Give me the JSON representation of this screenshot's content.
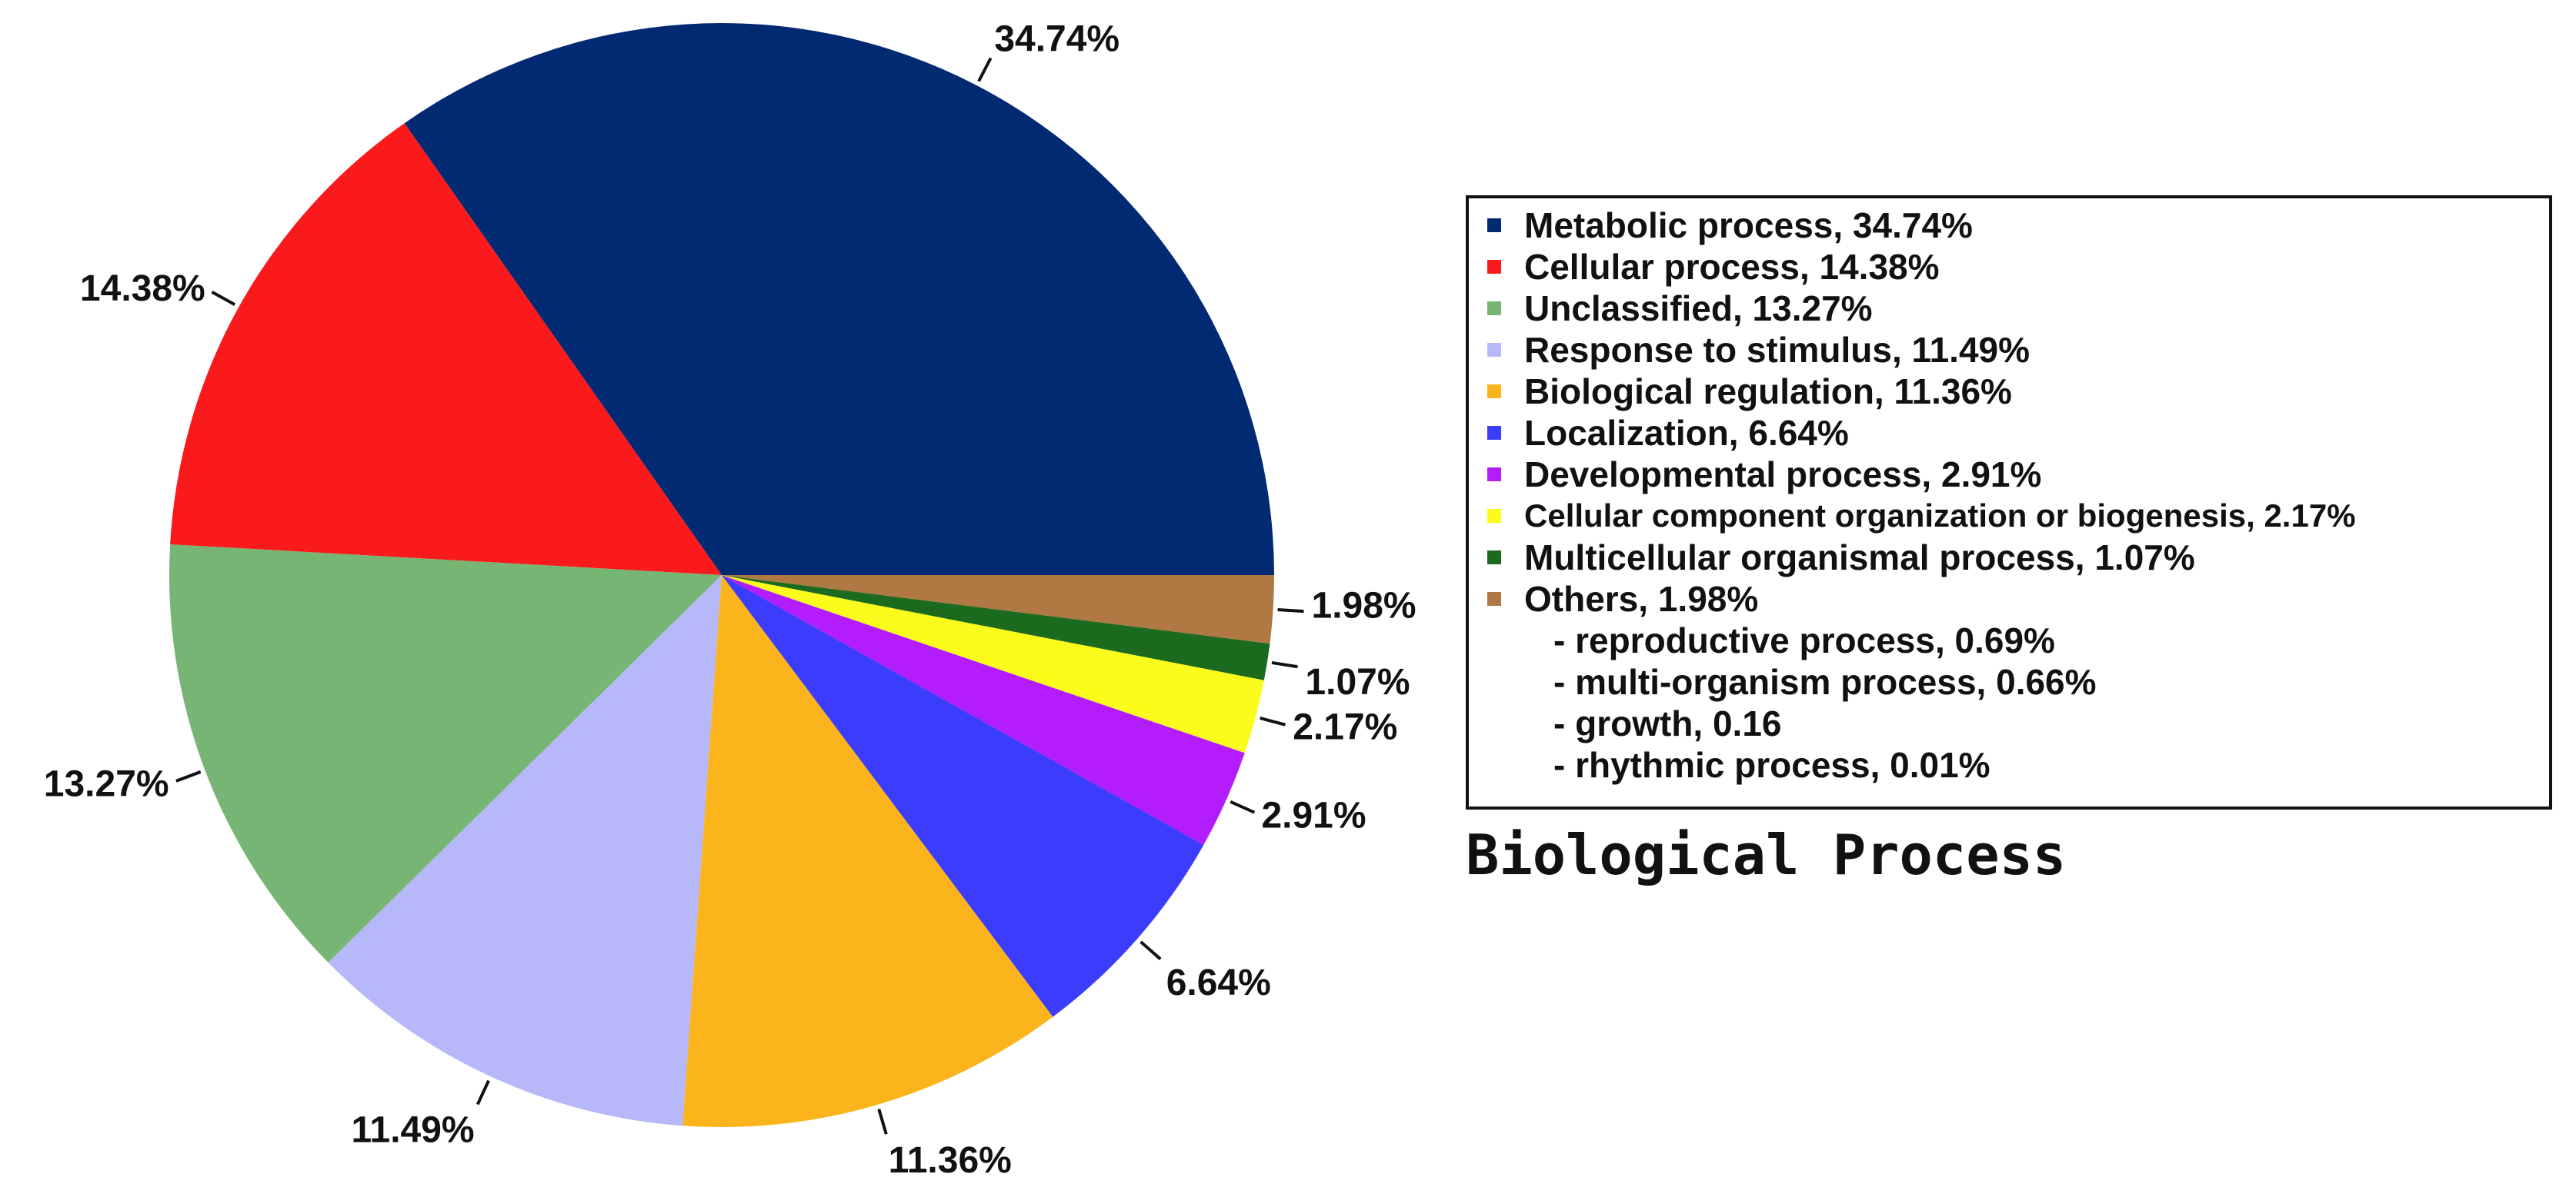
{
  "chart_data": {
    "type": "pie",
    "title": "Biological Process",
    "start_angle_deg": 0,
    "direction": "counterclockwise",
    "slices": [
      {
        "name": "Metabolic process",
        "value": 34.74,
        "label": "34.74%",
        "legend": "Metabolic process, 34.74%",
        "color": "#022a73"
      },
      {
        "name": "Cellular process",
        "value": 14.38,
        "label": "14.38%",
        "legend": "Cellular process, 14.38%",
        "color": "#fa1a1c"
      },
      {
        "name": "Unclassified",
        "value": 13.27,
        "label": "13.27%",
        "legend": "Unclassified, 13.27%",
        "color": "#77b574"
      },
      {
        "name": "Response to stimulus",
        "value": 11.49,
        "label": "11.49%",
        "legend": "Response to stimulus, 11.49%",
        "color": "#b7b8fa"
      },
      {
        "name": "Biological regulation",
        "value": 11.36,
        "label": "11.36%",
        "legend": "Biological regulation, 11.36%",
        "color": "#fcb41c"
      },
      {
        "name": "Localization",
        "value": 6.64,
        "label": "6.64%",
        "legend": "Localization, 6.64%",
        "color": "#3c3cfc"
      },
      {
        "name": "Developmental process",
        "value": 2.91,
        "label": "2.91%",
        "legend": "Developmental process, 2.91%",
        "color": "#b31cfc"
      },
      {
        "name": "Cellular component organization or biogenesis",
        "value": 2.17,
        "label": "2.17%",
        "legend": "Cellular component organization or biogenesis, 2.17%",
        "color": "#fbfb1c"
      },
      {
        "name": "Multicellular organismal process",
        "value": 1.07,
        "label": "1.07%",
        "legend": "Multicellular organismal process, 1.07%",
        "color": "#1b6a1d"
      },
      {
        "name": "Others",
        "value": 1.98,
        "label": "1.98%",
        "legend": "Others, 1.98%",
        "color": "#b07944"
      }
    ],
    "others_breakdown": [
      "- reproductive process, 0.69%",
      "- multi-organism process, 0.66%",
      "- growth, 0.16",
      "- rhythmic process, 0.01%"
    ]
  }
}
